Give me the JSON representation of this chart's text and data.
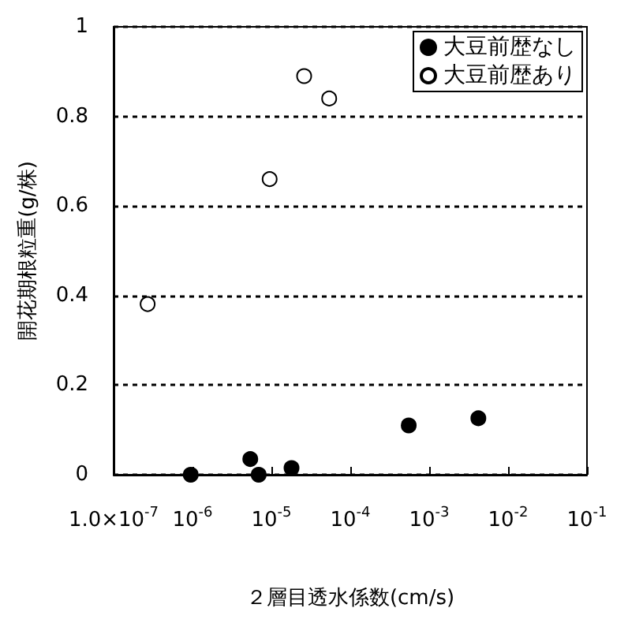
{
  "chart_data": {
    "type": "scatter",
    "xlabel": "２層目透水係数(cm/s)",
    "ylabel": "開花期根粒重(g/株)",
    "log": "x",
    "xlim": [
      1e-07,
      0.1
    ],
    "xticks": [
      {
        "value": 1e-07,
        "label": "1.0×10$^{-7}$"
      },
      {
        "value": 1e-06,
        "label": "10$^{-6}$"
      },
      {
        "value": 1e-05,
        "label": "10$^{-5}$"
      },
      {
        "value": 0.0001,
        "label": "10$^{-4}$"
      },
      {
        "value": 0.001,
        "label": "10$^{-3}$"
      },
      {
        "value": 0.01,
        "label": "10$^{-2}$"
      },
      {
        "value": 0.1,
        "label": "10$^{-1}$"
      }
    ],
    "ylim": [
      0,
      1
    ],
    "yticks": [
      0,
      0.2,
      0.4,
      0.6,
      0.8,
      1
    ],
    "grid": "y",
    "legend": "top right",
    "marker": "circle",
    "series": [
      {
        "name": "大豆前歴なし",
        "color": "#000000",
        "x": [
          9.5e-07,
          5.4e-06,
          6.9e-06,
          1.8e-05,
          0.00055,
          0.0042
        ],
        "values": [
          0,
          0.035,
          0,
          0.015,
          0.11,
          0.126
        ]
      },
      {
        "name": "大豆前歴あり",
        "color": "#ffffff",
        "x": [
          2.7e-07,
          9.5e-06,
          2.6e-05,
          5.4e-05
        ],
        "values": [
          0.381,
          0.66,
          0.89,
          0.84
        ]
      }
    ]
  }
}
